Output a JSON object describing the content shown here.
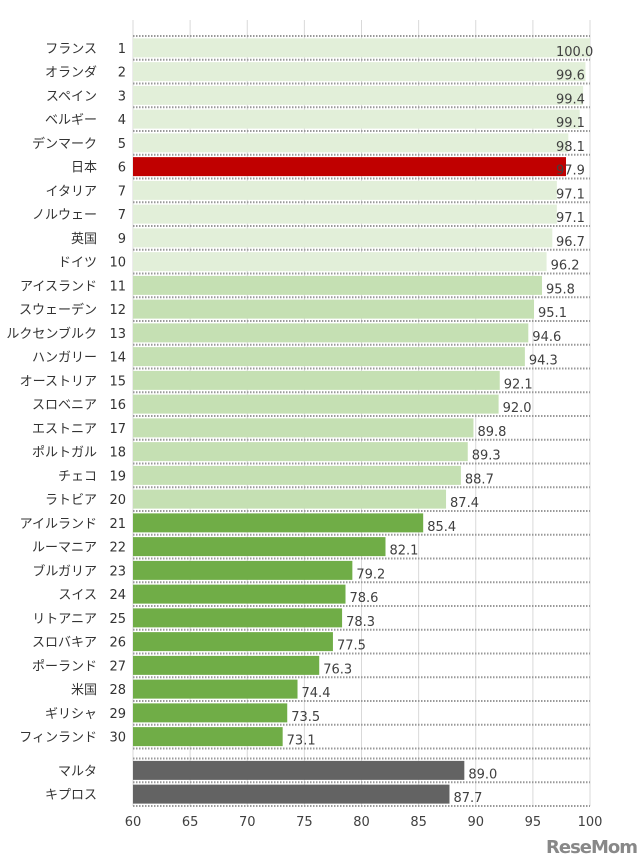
{
  "chart_data": {
    "type": "bar",
    "orientation": "horizontal",
    "title": "",
    "xlabel": "",
    "ylabel": "",
    "xlim": [
      60,
      100
    ],
    "xticks": [
      60,
      65,
      70,
      75,
      80,
      85,
      90,
      95,
      100
    ],
    "grid": true,
    "colors": {
      "rank_1_10": "#e2efd9",
      "rank_11_20": "#c5e0b3",
      "rank_21_30": "#70ad47",
      "highlight": "#c00000",
      "others": "#636363"
    },
    "ranked": [
      {
        "country": "フランス",
        "rank": "1",
        "value": 100.0
      },
      {
        "country": "オランダ",
        "rank": "2",
        "value": 99.6
      },
      {
        "country": "スペイン",
        "rank": "3",
        "value": 99.4
      },
      {
        "country": "ベルギー",
        "rank": "4",
        "value": 99.1
      },
      {
        "country": "デンマーク",
        "rank": "5",
        "value": 98.1
      },
      {
        "country": "日本",
        "rank": "6",
        "value": 97.9,
        "highlight": true
      },
      {
        "country": "イタリア",
        "rank": "7",
        "value": 97.1
      },
      {
        "country": "ノルウェー",
        "rank": "7",
        "value": 97.1
      },
      {
        "country": "英国",
        "rank": "9",
        "value": 96.7
      },
      {
        "country": "ドイツ",
        "rank": "10",
        "value": 96.2
      },
      {
        "country": "アイスランド",
        "rank": "11",
        "value": 95.8
      },
      {
        "country": "スウェーデン",
        "rank": "12",
        "value": 95.1
      },
      {
        "country": "ルクセンブルク",
        "rank": "13",
        "value": 94.6
      },
      {
        "country": "ハンガリー",
        "rank": "14",
        "value": 94.3
      },
      {
        "country": "オーストリア",
        "rank": "15",
        "value": 92.1
      },
      {
        "country": "スロベニア",
        "rank": "16",
        "value": 92.0
      },
      {
        "country": "エストニア",
        "rank": "17",
        "value": 89.8
      },
      {
        "country": "ポルトガル",
        "rank": "18",
        "value": 89.3
      },
      {
        "country": "チェコ",
        "rank": "19",
        "value": 88.7
      },
      {
        "country": "ラトビア",
        "rank": "20",
        "value": 87.4
      },
      {
        "country": "アイルランド",
        "rank": "21",
        "value": 85.4
      },
      {
        "country": "ルーマニア",
        "rank": "22",
        "value": 82.1
      },
      {
        "country": "ブルガリア",
        "rank": "23",
        "value": 79.2
      },
      {
        "country": "スイス",
        "rank": "24",
        "value": 78.6
      },
      {
        "country": "リトアニア",
        "rank": "25",
        "value": 78.3
      },
      {
        "country": "スロバキア",
        "rank": "26",
        "value": 77.5
      },
      {
        "country": "ポーランド",
        "rank": "27",
        "value": 76.3
      },
      {
        "country": "米国",
        "rank": "28",
        "value": 74.4
      },
      {
        "country": "ギリシャ",
        "rank": "29",
        "value": 73.5
      },
      {
        "country": "フィンランド",
        "rank": "30",
        "value": 73.1
      }
    ],
    "others": [
      {
        "country": "マルタ",
        "value": 89.0
      },
      {
        "country": "キプロス",
        "value": 87.7
      }
    ]
  },
  "watermark": "ReseMom"
}
